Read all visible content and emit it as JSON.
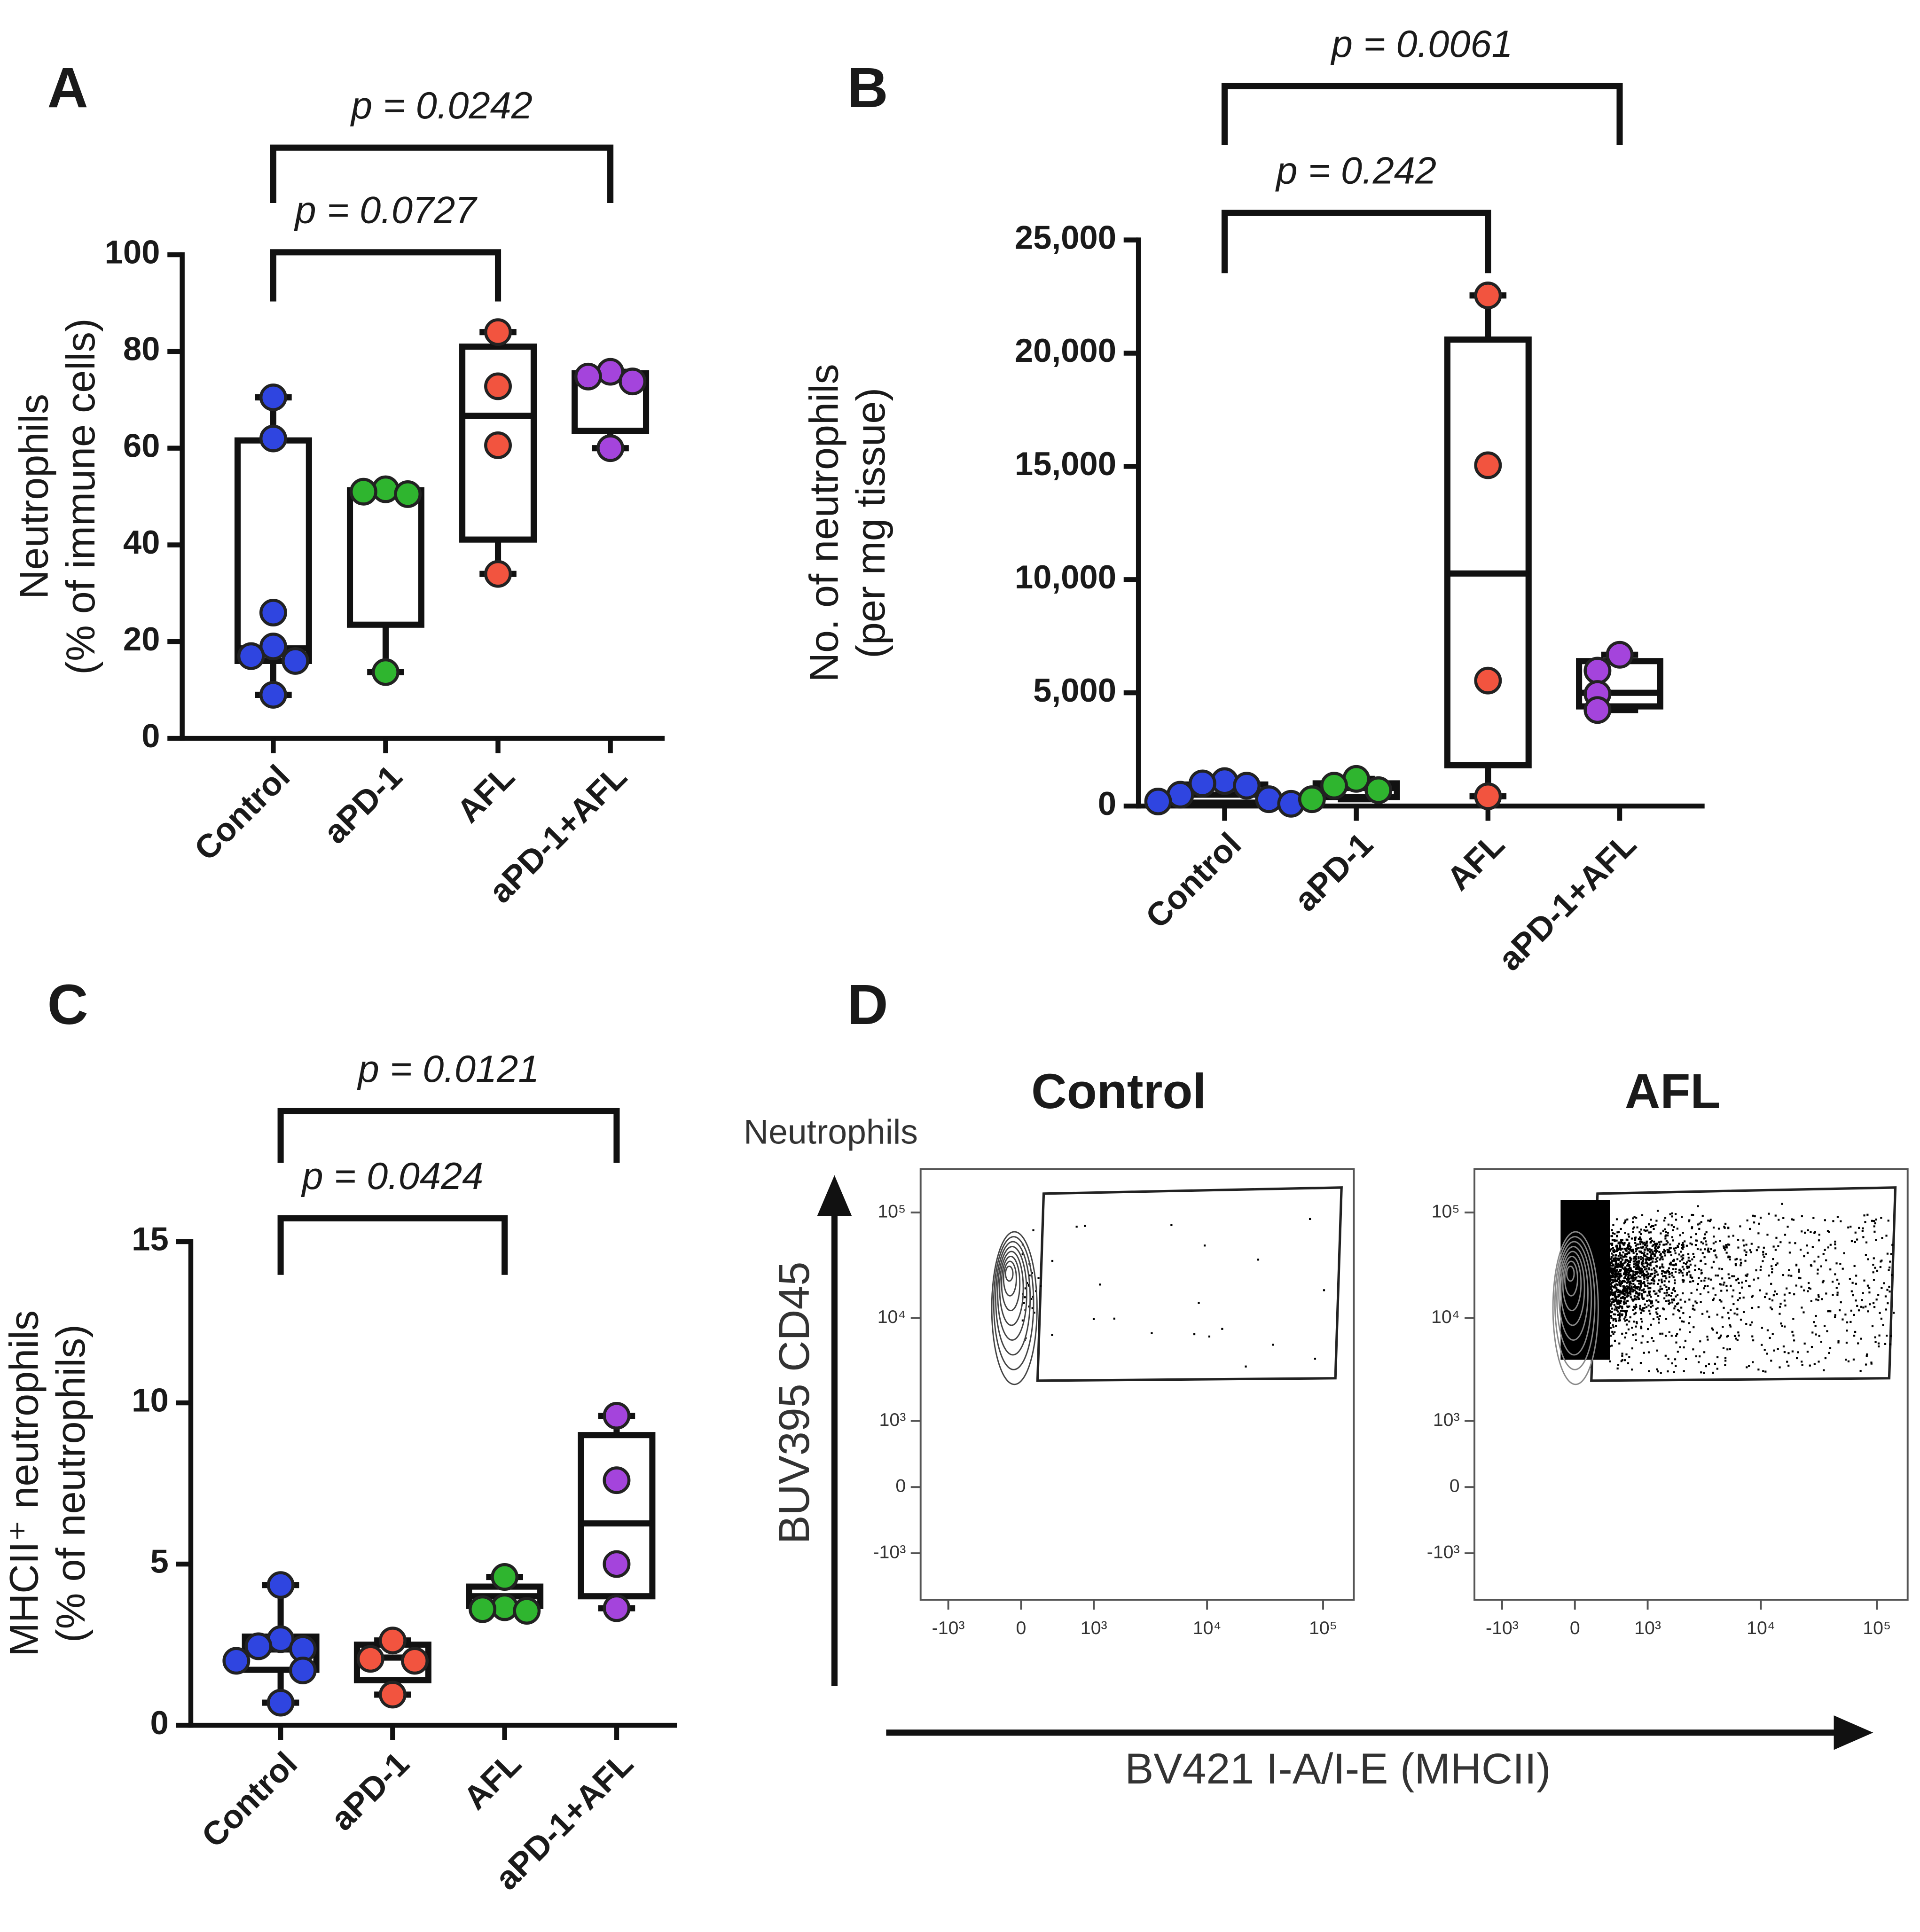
{
  "chart_data": [
    {
      "type": "box",
      "panel": "A",
      "ylabel": [
        "Neutrophils",
        "(% of immune cells)"
      ],
      "categories": [
        "Control",
        "aPD-1",
        "AFL",
        "aPD-1+AFL"
      ],
      "ylim": [
        0,
        100
      ],
      "yticks": [
        0,
        20,
        40,
        60,
        80,
        100
      ],
      "groups": [
        {
          "color": "#2f45e0",
          "values": [
            70.5,
            62,
            26,
            19,
            17,
            16,
            9
          ],
          "box": {
            "min": 9,
            "q1": 16,
            "median": 18.6,
            "q3": 61.6,
            "max": 70.5
          }
        },
        {
          "color": "#2fb52f",
          "values": [
            51.5,
            51,
            50.5,
            13.7
          ],
          "box": {
            "min": 13.7,
            "q1": 23.5,
            "median": 51,
            "q3": 51.3,
            "max": 51.5
          }
        },
        {
          "color": "#f2543f",
          "values": [
            84,
            72.8,
            60.6,
            34
          ],
          "box": {
            "min": 34,
            "q1": 41.1,
            "median": 66.7,
            "q3": 81,
            "max": 84
          }
        },
        {
          "color": "#a444dc",
          "values": [
            75.8,
            74.8,
            73.8,
            60
          ],
          "box": {
            "min": 60,
            "q1": 63.6,
            "median": 74.3,
            "q3": 75.5,
            "max": 75.8
          }
        }
      ],
      "comparisons": [
        {
          "groups": [
            0,
            2
          ],
          "label": "p = 0.0727"
        },
        {
          "groups": [
            0,
            3
          ],
          "label": "p = 0.0242"
        }
      ]
    },
    {
      "type": "box",
      "panel": "B",
      "ylabel": [
        "No. of neutrophils",
        "(per mg tissue)"
      ],
      "categories": [
        "Control",
        "aPD-1",
        "AFL",
        "aPD-1+AFL"
      ],
      "ylim": [
        0,
        25000
      ],
      "yticks": [
        0,
        {
          "value": 5000,
          "label": "5,000"
        },
        {
          "value": 10000,
          "label": "10,000"
        },
        {
          "value": 15000,
          "label": "15,000"
        },
        {
          "value": 20000,
          "label": "20,000"
        },
        {
          "value": 25000,
          "label": "25,000"
        }
      ],
      "groups": [
        {
          "color": "#2f45e0",
          "values": [
            1100,
            1000,
            900,
            500,
            300,
            200,
            100
          ],
          "box": {
            "min": 100,
            "q1": 150,
            "median": 500,
            "q3": 950,
            "max": 1100
          }
        },
        {
          "color": "#2fb52f",
          "values": [
            1200,
            900,
            700,
            300
          ],
          "box": {
            "min": 300,
            "q1": 400,
            "median": 800,
            "q3": 1000,
            "max": 1200
          }
        },
        {
          "color": "#f2543f",
          "values": [
            22550,
            15050,
            5540,
            430
          ],
          "box": {
            "min": 430,
            "q1": 1800,
            "median": 10270,
            "q3": 20600,
            "max": 22550
          }
        },
        {
          "color": "#a444dc",
          "values": [
            6680,
            5980,
            4950,
            4240
          ],
          "box": {
            "min": 4240,
            "q1": 4400,
            "median": 5000,
            "q3": 6400,
            "max": 6680
          }
        }
      ],
      "comparisons": [
        {
          "groups": [
            0,
            2
          ],
          "label": "p = 0.242"
        },
        {
          "groups": [
            0,
            3
          ],
          "label": "p = 0.0061"
        }
      ]
    },
    {
      "type": "box",
      "panel": "C",
      "ylabel": [
        "MHCII⁺ neutrophils",
        "(% of neutrophils)"
      ],
      "categories": [
        "Control",
        "aPD-1",
        "AFL",
        "aPD-1+AFL"
      ],
      "ylim": [
        0,
        15
      ],
      "yticks": [
        0,
        5,
        10,
        15
      ],
      "groups": [
        {
          "color": "#2f45e0",
          "values": [
            4.35,
            2.67,
            2.45,
            2.37,
            2,
            1.7,
            0.7
          ],
          "box": {
            "min": 0.7,
            "q1": 1.72,
            "median": 2.35,
            "q3": 2.75,
            "max": 4.35
          }
        },
        {
          "color": "#f2543f",
          "values": [
            2.63,
            2.06,
            2,
            0.95
          ],
          "box": {
            "min": 0.95,
            "q1": 1.4,
            "median": 2.1,
            "q3": 2.5,
            "max": 2.63
          }
        },
        {
          "color": "#2fb52f",
          "values": [
            4.6,
            3.66,
            3.6,
            3.55
          ],
          "box": {
            "min": 3.55,
            "q1": 3.7,
            "median": 4,
            "q3": 4.3,
            "max": 4.6
          }
        },
        {
          "color": "#a444dc",
          "values": [
            9.6,
            7.6,
            5,
            3.63
          ],
          "box": {
            "min": 3.63,
            "q1": 4,
            "median": 6.26,
            "q3": 9,
            "max": 9.6
          }
        }
      ],
      "comparisons": [
        {
          "groups": [
            0,
            2
          ],
          "label": "p = 0.0424"
        },
        {
          "groups": [
            0,
            3
          ],
          "label": "p = 0.0121"
        }
      ]
    },
    {
      "type": "flow",
      "panel": "D",
      "titles": [
        "Control",
        "AFL"
      ],
      "population": "Neutrophils",
      "ylabel": "BUV395 CD45",
      "xlabel": "BV421 I-A/I-E (MHCII)",
      "scale": "asinh",
      "xlim": [
        -1800,
        184000
      ],
      "ylim": [
        -2900,
        258000
      ],
      "xticks": [
        {
          "value": -1000,
          "label": "-10³"
        },
        0,
        {
          "value": 1000,
          "label": "10³"
        },
        {
          "value": 10000,
          "label": "10⁴"
        },
        {
          "value": 100000,
          "label": "10⁵"
        }
      ],
      "yticks": [
        {
          "value": -1000,
          "label": "-10³"
        },
        0,
        {
          "value": 1000,
          "label": "10³"
        },
        {
          "value": 10000,
          "label": "10⁴"
        },
        {
          "value": 100000,
          "label": "10⁵"
        }
      ]
    }
  ]
}
